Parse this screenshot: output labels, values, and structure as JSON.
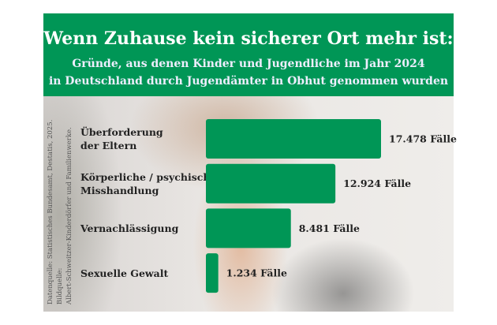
{
  "chart_data": {
    "type": "bar",
    "orientation": "horizontal",
    "title": "Wenn Zuhause kein sicherer Ort mehr ist:",
    "subtitle": [
      "Gründe, aus denen Kinder und Jugendliche im Jahr 2024",
      "in Deutschland durch Jugendämter in Obhut genommen wurden"
    ],
    "categories": [
      [
        "Überforderung",
        "der Eltern"
      ],
      [
        "Körperliche / psychische",
        "Misshandlung"
      ],
      [
        "Vernachlässigung"
      ],
      [
        "Sexuelle Gewalt"
      ]
    ],
    "values": [
      17478,
      12924,
      8481,
      1234
    ],
    "value_labels": [
      "17.478 Fälle",
      "12.924 Fälle",
      "8.481 Fälle",
      "1.234 Fälle"
    ],
    "bar_color": "#009656",
    "grid": false,
    "axes_visible": false
  },
  "source": [
    "Datenquelle: Statistisches Bundesamt, Destatis, 2025. Bildquelle:",
    "Albert-Schweitzer-Kinderdörfer und Familienwerke."
  ],
  "colors": {
    "banner": "#009656",
    "text_dark": "#222222"
  }
}
